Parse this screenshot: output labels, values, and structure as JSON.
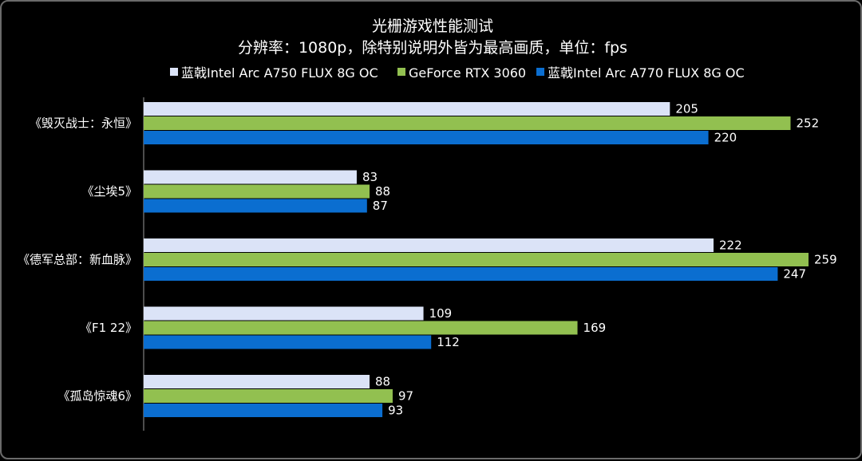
{
  "chart_data": {
    "type": "bar",
    "orientation": "horizontal",
    "title": "光栅游戏性能测试",
    "subtitle": "分辨率：1080p，除特别说明外皆为最高画质，单位：fps",
    "categories": [
      "《毁灭战士：永恒》",
      "《尘埃5》",
      "《德军总部：新血脉》",
      "《F1 22》",
      "《孤岛惊魂6》"
    ],
    "series": [
      {
        "name": "蓝戟Intel Arc A750 FLUX 8G OC",
        "color": "#dbe3f7",
        "values": [
          205,
          83,
          222,
          109,
          88
        ]
      },
      {
        "name": "GeForce RTX 3060",
        "color": "#92c050",
        "values": [
          252,
          88,
          259,
          169,
          97
        ]
      },
      {
        "name": "蓝戟Intel Arc A770 FLUX 8G OC",
        "color": "#0b6ed0",
        "values": [
          220,
          87,
          247,
          112,
          93
        ]
      }
    ],
    "xlim": [
      0,
      270
    ],
    "grid": false,
    "legend_position": "top"
  }
}
